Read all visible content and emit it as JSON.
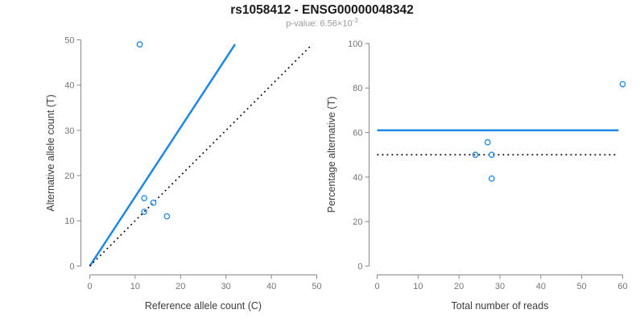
{
  "header": {
    "title": "rs1058412 - ENSG00000048342",
    "subtitle_prefix": "p-value: 6.56×10",
    "subtitle_exponent": "-3"
  },
  "colors": {
    "accent_blue": "#1F87E5",
    "axis_line": "#888888",
    "tick_label": "#757575",
    "axis_title": "#3C3C3C",
    "title_text": "#1A1A1A",
    "subtitle_text": "#9A9A9A",
    "dotted_line": "#000000"
  },
  "chart_data": [
    {
      "id": "ref-vs-alt-scatter",
      "type": "scatter",
      "xlabel": "Reference allele count (C)",
      "ylabel": "Alternative allele count (T)",
      "xlim": [
        0,
        50
      ],
      "ylim": [
        0,
        50
      ],
      "xticks": [
        0,
        10,
        20,
        30,
        40,
        50
      ],
      "yticks": [
        0,
        10,
        20,
        30,
        40,
        50
      ],
      "grid": false,
      "point_color": "#1F87E5",
      "points": [
        {
          "x": 11,
          "y": 49
        },
        {
          "x": 12,
          "y": 15
        },
        {
          "x": 14,
          "y": 14
        },
        {
          "x": 12,
          "y": 12
        },
        {
          "x": 17,
          "y": 11
        }
      ],
      "lines": [
        {
          "name": "fitted-ratio-line",
          "style": "solid",
          "color": "#1F87E5",
          "x1": 0,
          "y1": 0,
          "x2": 32,
          "y2": 49
        },
        {
          "name": "identity-line",
          "style": "dotted",
          "color": "#000000",
          "x1": 0,
          "y1": 0,
          "x2": 49,
          "y2": 49
        }
      ]
    },
    {
      "id": "reads-vs-percentage-scatter",
      "type": "scatter",
      "xlabel": "Total number of reads",
      "ylabel": "Percentage alternative (T)",
      "xlim": [
        0,
        60
      ],
      "ylim": [
        0,
        100
      ],
      "xticks": [
        0,
        10,
        20,
        30,
        40,
        50,
        60
      ],
      "yticks": [
        0,
        20,
        40,
        60,
        80,
        100
      ],
      "grid": false,
      "point_color": "#1F87E5",
      "points": [
        {
          "x": 24,
          "y": 50
        },
        {
          "x": 27,
          "y": 55.6
        },
        {
          "x": 28,
          "y": 50
        },
        {
          "x": 28,
          "y": 39.3
        },
        {
          "x": 60,
          "y": 81.7
        }
      ],
      "lines": [
        {
          "name": "mean-percentage-line",
          "style": "solid",
          "color": "#1F87E5",
          "x1": 0,
          "y1": 61,
          "x2": 59,
          "y2": 61
        },
        {
          "name": "fifty-percent-line",
          "style": "dotted",
          "color": "#000000",
          "x1": 0,
          "y1": 50,
          "x2": 59,
          "y2": 50
        }
      ]
    }
  ]
}
